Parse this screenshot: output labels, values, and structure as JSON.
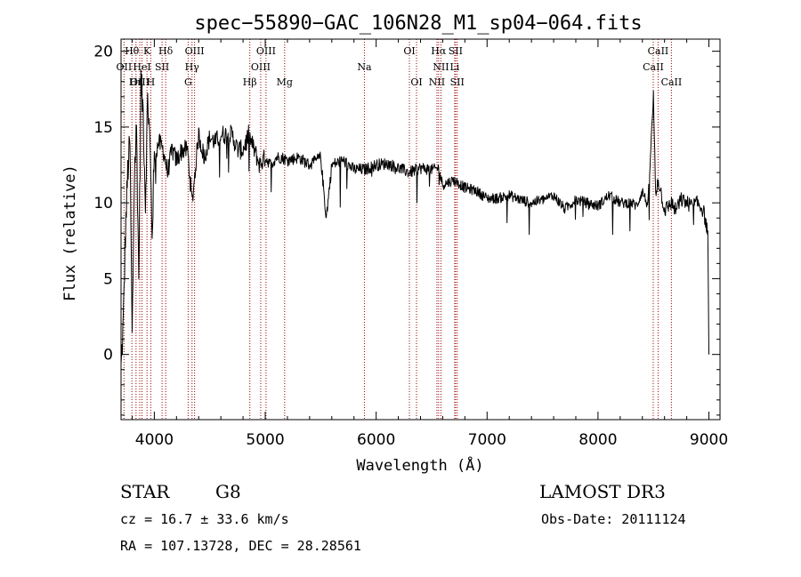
{
  "chart_data": {
    "type": "line",
    "title": "spec−55890−GAC_106N28_M1_sp04−064.fits",
    "xlabel": "Wavelength (Å)",
    "ylabel": "Flux (relative)",
    "xlim": [
      3700,
      9100
    ],
    "ylim": [
      -4.3,
      20.8
    ],
    "xticks": [
      4000,
      5000,
      6000,
      7000,
      8000,
      9000
    ],
    "xtick_labels": [
      "4000",
      "5000",
      "6000",
      "7000",
      "8000",
      "9000"
    ],
    "yticks": [
      0,
      5,
      10,
      15,
      20
    ],
    "ytick_labels": [
      "0",
      "5",
      "10",
      "15",
      "20"
    ],
    "series": [
      {
        "name": "spectrum",
        "color": "#000000",
        "x": [
          3700,
          3720,
          3740,
          3760,
          3780,
          3800,
          3820,
          3840,
          3860,
          3880,
          3900,
          3920,
          3940,
          3960,
          3980,
          4000,
          4040,
          4080,
          4120,
          4160,
          4200,
          4250,
          4300,
          4340,
          4400,
          4450,
          4500,
          4550,
          4600,
          4650,
          4700,
          4750,
          4800,
          4850,
          4900,
          4950,
          5000,
          5050,
          5100,
          5150,
          5200,
          5300,
          5400,
          5500,
          5550,
          5600,
          5700,
          5800,
          5900,
          6000,
          6100,
          6200,
          6300,
          6400,
          6500,
          6560,
          6600,
          6700,
          6800,
          6900,
          7000,
          7100,
          7200,
          7300,
          7400,
          7500,
          7600,
          7700,
          7800,
          7900,
          8000,
          8100,
          8200,
          8300,
          8350,
          8400,
          8450,
          8500,
          8520,
          8540,
          8560,
          8600,
          8662,
          8700,
          8750,
          8800,
          8850,
          8900,
          8950,
          8990,
          9000
        ],
        "y": [
          -1,
          2,
          8,
          12,
          14,
          1,
          12,
          15,
          5,
          18,
          16,
          10,
          17,
          14,
          8,
          13,
          14,
          13.5,
          12,
          13.5,
          12.8,
          13.5,
          13.5,
          10,
          14.5,
          13,
          14.3,
          14,
          14.5,
          14.5,
          14.5,
          13.5,
          13.5,
          14.5,
          13.5,
          12.5,
          13,
          12.5,
          13,
          13,
          12.8,
          13,
          12.5,
          13,
          9,
          12.5,
          12.8,
          12.2,
          12.2,
          12.5,
          12.6,
          12.3,
          12.0,
          12.3,
          12.2,
          12.3,
          11.2,
          11.5,
          11,
          10.8,
          10.3,
          10.3,
          10.5,
          10.2,
          10,
          10.2,
          10.5,
          9.6,
          10.2,
          10,
          9.8,
          10.5,
          10,
          10,
          9.8,
          10.8,
          9.8,
          17,
          10.5,
          11.5,
          11,
          9.5,
          10,
          9.5,
          10.2,
          10,
          9.8,
          10,
          9.5,
          8,
          0
        ]
      }
    ],
    "lines": [
      {
        "name": "OII",
        "wavelength": 3727
      },
      {
        "name": "Hθ",
        "wavelength": 3798
      },
      {
        "name": "OIII",
        "wavelength": 3869
      },
      {
        "name": "Hη",
        "wavelength": 3835
      },
      {
        "name": "HeI",
        "wavelength": 3889
      },
      {
        "name": "K",
        "wavelength": 3934
      },
      {
        "name": "H",
        "wavelength": 3968
      },
      {
        "name": "SII",
        "wavelength": 4070
      },
      {
        "name": "Hδ",
        "wavelength": 4102
      },
      {
        "name": "G",
        "wavelength": 4305
      },
      {
        "name": "Hγ",
        "wavelength": 4340
      },
      {
        "name": "OIII",
        "wavelength": 4363
      },
      {
        "name": "Hβ",
        "wavelength": 4861
      },
      {
        "name": "OIII",
        "wavelength": 4959
      },
      {
        "name": "OIII",
        "wavelength": 5007
      },
      {
        "name": "Mg",
        "wavelength": 5175
      },
      {
        "name": "Na",
        "wavelength": 5894
      },
      {
        "name": "OI",
        "wavelength": 6300
      },
      {
        "name": "OI",
        "wavelength": 6364
      },
      {
        "name": "NII",
        "wavelength": 6548
      },
      {
        "name": "Hα",
        "wavelength": 6563
      },
      {
        "name": "NII",
        "wavelength": 6584
      },
      {
        "name": "Li",
        "wavelength": 6708
      },
      {
        "name": "SII",
        "wavelength": 6716
      },
      {
        "name": "SII",
        "wavelength": 6731
      },
      {
        "name": "CaII",
        "wavelength": 8498
      },
      {
        "name": "CaII",
        "wavelength": 8542
      },
      {
        "name": "CaII",
        "wavelength": 8662
      }
    ],
    "line_labels": [
      {
        "text": "Hθ",
        "wavelength": 3798,
        "row": 1
      },
      {
        "text": "K",
        "wavelength": 3934,
        "row": 1
      },
      {
        "text": "Hδ",
        "wavelength": 4102,
        "row": 1
      },
      {
        "text": "OIII",
        "wavelength": 4363,
        "row": 1
      },
      {
        "text": "OIII",
        "wavelength": 5007,
        "row": 1
      },
      {
        "text": "OI",
        "wavelength": 6300,
        "row": 1
      },
      {
        "text": "Hα",
        "wavelength": 6563,
        "row": 1
      },
      {
        "text": "SII",
        "wavelength": 6716,
        "row": 1
      },
      {
        "text": "CaII",
        "wavelength": 8542,
        "row": 1
      },
      {
        "text": "OII",
        "wavelength": 3727,
        "row": 2
      },
      {
        "text": "HeI",
        "wavelength": 3889,
        "row": 2
      },
      {
        "text": "SII",
        "wavelength": 4070,
        "row": 2
      },
      {
        "text": "Hγ",
        "wavelength": 4340,
        "row": 2
      },
      {
        "text": "OIII",
        "wavelength": 4959,
        "row": 2
      },
      {
        "text": "Na",
        "wavelength": 5894,
        "row": 2
      },
      {
        "text": "NII",
        "wavelength": 6584,
        "row": 2
      },
      {
        "text": "Li",
        "wavelength": 6708,
        "row": 2
      },
      {
        "text": "CaII",
        "wavelength": 8498,
        "row": 2
      },
      {
        "text": "OIII",
        "wavelength": 3869,
        "row": 3
      },
      {
        "text": "Hη",
        "wavelength": 3835,
        "row": 3
      },
      {
        "text": "H",
        "wavelength": 3968,
        "row": 3
      },
      {
        "text": "G",
        "wavelength": 4305,
        "row": 3
      },
      {
        "text": "Hβ",
        "wavelength": 4861,
        "row": 3
      },
      {
        "text": "Mg",
        "wavelength": 5175,
        "row": 3
      },
      {
        "text": "OI",
        "wavelength": 6364,
        "row": 3
      },
      {
        "text": "NII",
        "wavelength": 6548,
        "row": 3
      },
      {
        "text": "SII",
        "wavelength": 6731,
        "row": 3
      },
      {
        "text": "CaII",
        "wavelength": 8662,
        "row": 3
      }
    ],
    "line_color": "#a00000"
  },
  "info": {
    "object_type": "STAR",
    "subclass": "G8",
    "survey": "LAMOST DR3",
    "redshift": "cz = 16.7 ± 33.6 km/s",
    "obs_date": "Obs-Date: 20111124",
    "coords": "RA = 107.13728, DEC =  28.28561"
  }
}
